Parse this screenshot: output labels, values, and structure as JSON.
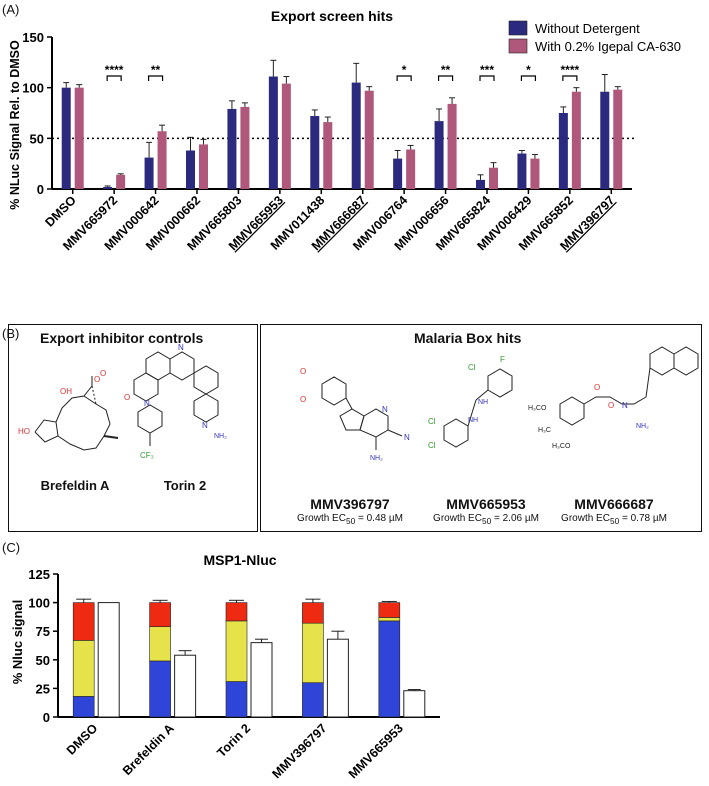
{
  "panel_a": {
    "tag": "(A)",
    "chart_data": {
      "type": "bar",
      "title": "Export screen hits",
      "ylabel": "% NLuc Signal Rel. to DMSO",
      "ylim": [
        0,
        150
      ],
      "yticks": [
        "0",
        "50",
        "100",
        "150"
      ],
      "threshold": 50,
      "categories": [
        "DMSO",
        "MMV665972",
        "MMV000642",
        "MMV000662",
        "MMV665803",
        "MMV665953",
        "MMV011438",
        "MMV666687",
        "MMV006764",
        "MMV006656",
        "MMV665824",
        "MMV006429",
        "MMV665852",
        "MMV396797"
      ],
      "underlined": [
        false,
        false,
        false,
        false,
        false,
        true,
        false,
        true,
        false,
        false,
        false,
        false,
        false,
        true
      ],
      "series": [
        {
          "name": "Without Detergent",
          "color": "#2b2a7f",
          "values": [
            100,
            2,
            31,
            38,
            79,
            111,
            72,
            105,
            30,
            67,
            9,
            35,
            75,
            96
          ],
          "errors": [
            5,
            1,
            15,
            13,
            8,
            16,
            6,
            19,
            8,
            12,
            5,
            3,
            6,
            17
          ]
        },
        {
          "name": "With 0.2% Igepal CA-630",
          "color": "#b0577c",
          "values": [
            100,
            14,
            57,
            44,
            81,
            104,
            66,
            97,
            39,
            84,
            21,
            30,
            96,
            98
          ],
          "errors": [
            3,
            1,
            6,
            5,
            4,
            7,
            5,
            4,
            4,
            6,
            5,
            4,
            4,
            3
          ]
        }
      ],
      "significance": [
        {
          "index": 1,
          "label": "****"
        },
        {
          "index": 2,
          "label": "**"
        },
        {
          "index": 8,
          "label": "*"
        },
        {
          "index": 9,
          "label": "**"
        },
        {
          "index": 10,
          "label": "***"
        },
        {
          "index": 11,
          "label": "*"
        },
        {
          "index": 12,
          "label": "****"
        }
      ]
    }
  },
  "panel_b": {
    "tag": "(B)",
    "controls_title": "Export inhibitor controls",
    "hits_title": "Malaria Box hits",
    "controls": [
      "Brefeldin A",
      "Torin 2"
    ],
    "hits": [
      {
        "name": "MMV396797",
        "ec50_label": "Growth EC",
        "ec50_sub": "50",
        "ec50_value": " = 0.48 µM"
      },
      {
        "name": "MMV665953",
        "ec50_label": "Growth EC",
        "ec50_sub": "50",
        "ec50_value": " = 2.06 µM"
      },
      {
        "name": "MMV666687",
        "ec50_label": "Growth EC",
        "ec50_sub": "50",
        "ec50_value": " = 0.78 µM"
      }
    ],
    "atoms": {
      "o": "O",
      "oh": "OH",
      "ho": "HO",
      "n": "N",
      "f": "F",
      "cl": "Cl",
      "nh2": "NH₂",
      "nh": "NH",
      "h3co": "H₃CO",
      "h3c": "H₃C",
      "cf3": "CF₃"
    }
  },
  "panel_c": {
    "tag": "(C)",
    "chart_data": {
      "type": "stacked-bar",
      "title": "MSP1-Nluc",
      "ylabel": "% Nluc signal",
      "ylim": [
        0,
        125
      ],
      "yticks": [
        "0",
        "25",
        "50",
        "75",
        "100",
        "125"
      ],
      "categories": [
        "DMSO",
        "Brefeldin A",
        "Torin 2",
        "MMV396797",
        "MMV665953"
      ],
      "stack_colors": [
        "#2f45d8",
        "#e6e34a",
        "#ee2a13"
      ],
      "stacks": [
        {
          "blue": 18,
          "yellow": 49,
          "red": 33,
          "blue_err": 1,
          "yellow_err": 3,
          "red_err": 3
        },
        {
          "blue": 49,
          "yellow": 30,
          "red": 21,
          "blue_err": 1,
          "yellow_err": 3,
          "red_err": 2
        },
        {
          "blue": 31,
          "yellow": 53,
          "red": 16,
          "blue_err": 1,
          "yellow_err": 2,
          "red_err": 2
        },
        {
          "blue": 30,
          "yellow": 52,
          "red": 18,
          "blue_err": 1,
          "yellow_err": 2,
          "red_err": 3
        },
        {
          "blue": 84,
          "yellow": 3,
          "red": 13,
          "blue_err": 2,
          "yellow_err": 1,
          "red_err": 1
        }
      ],
      "white_values": [
        100,
        54,
        65,
        68,
        23
      ],
      "white_errors": [
        0,
        4,
        3,
        7,
        1
      ]
    }
  }
}
